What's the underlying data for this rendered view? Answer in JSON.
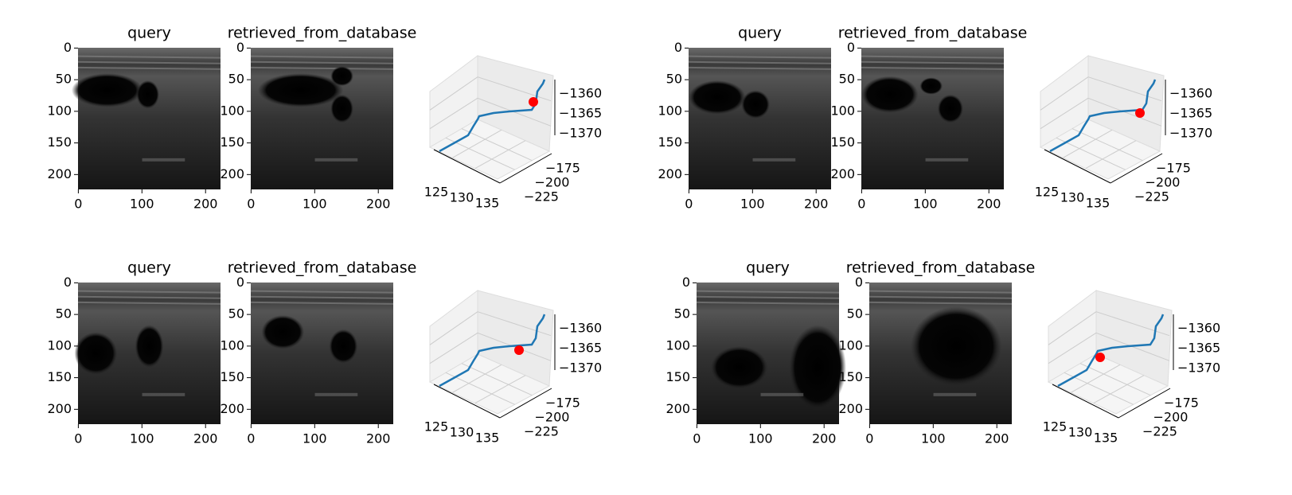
{
  "panels": [
    {
      "query_title": "query",
      "retrieved_title": "retrieved_from_database",
      "image_xlim": [
        -0.5,
        223.5
      ],
      "image_ylim": [
        223.5,
        -0.5
      ],
      "image_xticks": [
        0,
        100,
        200
      ],
      "image_yticks": [
        0,
        50,
        100,
        150,
        200
      ],
      "plot3d": {
        "xticks": [
          125,
          130,
          135
        ],
        "yticks": [
          {
            "value": -175,
            "label": "−175"
          },
          {
            "value": -200,
            "label": "−200"
          },
          {
            "value": -225,
            "label": "−225"
          }
        ],
        "zticks": [
          {
            "value": -1360,
            "label": "−1360"
          },
          {
            "value": -1365,
            "label": "−1365"
          },
          {
            "value": -1370,
            "label": "−1370"
          }
        ]
      }
    },
    {
      "query_title": "query",
      "retrieved_title": "retrieved_from_database",
      "image_xlim": [
        -0.5,
        223.5
      ],
      "image_ylim": [
        223.5,
        -0.5
      ],
      "image_xticks": [
        0,
        100,
        200
      ],
      "image_yticks": [
        0,
        50,
        100,
        150,
        200
      ],
      "plot3d": {
        "xticks": [
          125,
          130,
          135
        ],
        "yticks": [
          {
            "value": -175,
            "label": "−175"
          },
          {
            "value": -200,
            "label": "−200"
          },
          {
            "value": -225,
            "label": "−225"
          }
        ],
        "zticks": [
          {
            "value": -1360,
            "label": "−1360"
          },
          {
            "value": -1365,
            "label": "−1365"
          },
          {
            "value": -1370,
            "label": "−1370"
          }
        ]
      }
    },
    {
      "query_title": "query",
      "retrieved_title": "retrieved_from_database",
      "image_xlim": [
        -0.5,
        223.5
      ],
      "image_ylim": [
        223.5,
        -0.5
      ],
      "image_xticks": [
        0,
        100,
        200
      ],
      "image_yticks": [
        0,
        50,
        100,
        150,
        200
      ],
      "plot3d": {
        "xticks": [
          125,
          130,
          135
        ],
        "yticks": [
          {
            "value": -175,
            "label": "−175"
          },
          {
            "value": -200,
            "label": "−200"
          },
          {
            "value": -225,
            "label": "−225"
          }
        ],
        "zticks": [
          {
            "value": -1360,
            "label": "−1360"
          },
          {
            "value": -1365,
            "label": "−1365"
          },
          {
            "value": -1370,
            "label": "−1370"
          }
        ]
      }
    },
    {
      "query_title": "query",
      "retrieved_title": "retrieved_from_database",
      "image_xlim": [
        -0.5,
        223.5
      ],
      "image_ylim": [
        223.5,
        -0.5
      ],
      "image_xticks": [
        0,
        100,
        200
      ],
      "image_yticks": [
        0,
        50,
        100,
        150,
        200
      ],
      "plot3d": {
        "xticks": [
          125,
          130,
          135
        ],
        "yticks": [
          {
            "value": -175,
            "label": "−175"
          },
          {
            "value": -200,
            "label": "−200"
          },
          {
            "value": -225,
            "label": "−225"
          }
        ],
        "zticks": [
          {
            "value": -1360,
            "label": "−1360"
          },
          {
            "value": -1365,
            "label": "−1365"
          },
          {
            "value": -1370,
            "label": "−1370"
          }
        ]
      }
    }
  ]
}
